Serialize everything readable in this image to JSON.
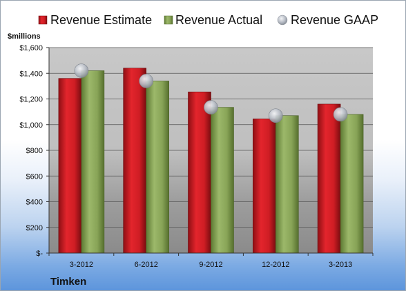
{
  "chart_data": {
    "type": "bar",
    "categories": [
      "3-2012",
      "6-2012",
      "9-2012",
      "12-2012",
      "3-2013"
    ],
    "series": [
      {
        "name": "Revenue Estimate",
        "kind": "bar",
        "color": "#d42027",
        "values": [
          1360,
          1440,
          1255,
          1045,
          1160
        ]
      },
      {
        "name": "Revenue Actual",
        "kind": "bar",
        "color": "#8da85a",
        "values": [
          1420,
          1340,
          1135,
          1070,
          1080
        ]
      },
      {
        "name": "Revenue GAAP",
        "kind": "marker",
        "color": "#b7bcc6",
        "values": [
          1420,
          1340,
          1135,
          1070,
          1080
        ]
      }
    ],
    "unit_label": "$millions",
    "yticks": [
      "$-",
      "$200",
      "$400",
      "$600",
      "$800",
      "$1,000",
      "$1,200",
      "$1,400",
      "$1,600"
    ],
    "ylim": [
      0,
      1600
    ],
    "grid": true,
    "legend_position": "top",
    "company": "Timken"
  }
}
